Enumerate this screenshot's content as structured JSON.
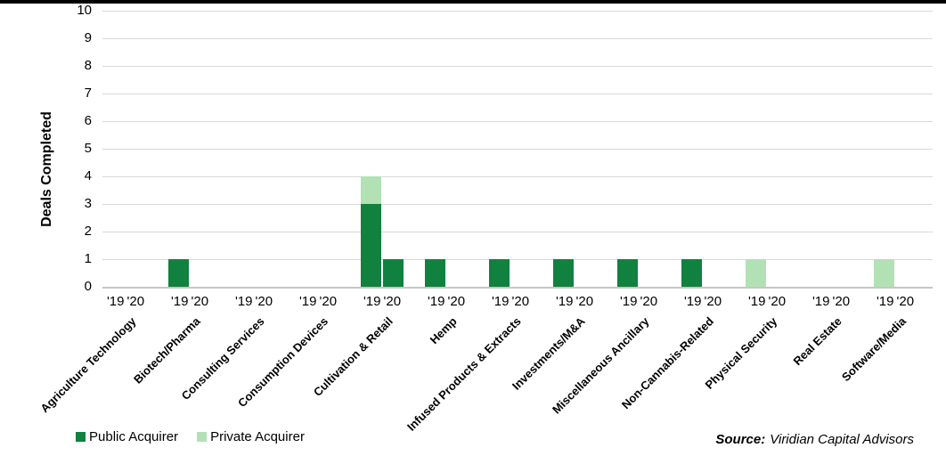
{
  "chart_data": {
    "type": "bar",
    "stacked": true,
    "grid": true,
    "ylabel": "Deals Completed",
    "xlabel": "",
    "title": "",
    "ylim": [
      0,
      10
    ],
    "ytick_step": 1,
    "legend_position": "bottom-left",
    "year_labels": [
      "'19",
      "'20"
    ],
    "categories": [
      "Agriculture Technology",
      "Biotech/Pharma",
      "Consulting Services",
      "Consumption Devices",
      "Cultivation & Retail",
      "Hemp",
      "Infused Products & Extracts",
      "Investments/M&A",
      "Miscellaneous Ancillary",
      "Non-Cannabis-Related",
      "Physical Security",
      "Real Estate",
      "Software/Media"
    ],
    "series": [
      {
        "name": "Public Acquirer",
        "color": "#10813E",
        "values_19": [
          0,
          1,
          0,
          0,
          3,
          1,
          1,
          1,
          1,
          1,
          0,
          0,
          0
        ],
        "values_20": [
          0,
          0,
          0,
          0,
          1,
          0,
          0,
          0,
          0,
          0,
          0,
          0,
          0
        ]
      },
      {
        "name": "Private Acquirer",
        "color": "#B2E1B5",
        "values_19": [
          0,
          0,
          0,
          0,
          1,
          0,
          0,
          0,
          0,
          0,
          1,
          0,
          1
        ],
        "values_20": [
          0,
          0,
          0,
          0,
          0,
          0,
          0,
          0,
          0,
          0,
          0,
          0,
          0
        ]
      }
    ]
  },
  "legend": {
    "items": [
      {
        "label": "Public Acquirer",
        "color": "#10813E"
      },
      {
        "label": "Private Acquirer",
        "color": "#B2E1B5"
      }
    ]
  },
  "source": {
    "label": "Source:",
    "text": "Viridian Capital Advisors"
  },
  "colors": {
    "public_green": "#10813E",
    "private_green": "#B2E1B5",
    "gridline": "#D9D9D9",
    "axis_line": "#C6C6C6",
    "top_rule": "#000000",
    "text": "#000000"
  }
}
